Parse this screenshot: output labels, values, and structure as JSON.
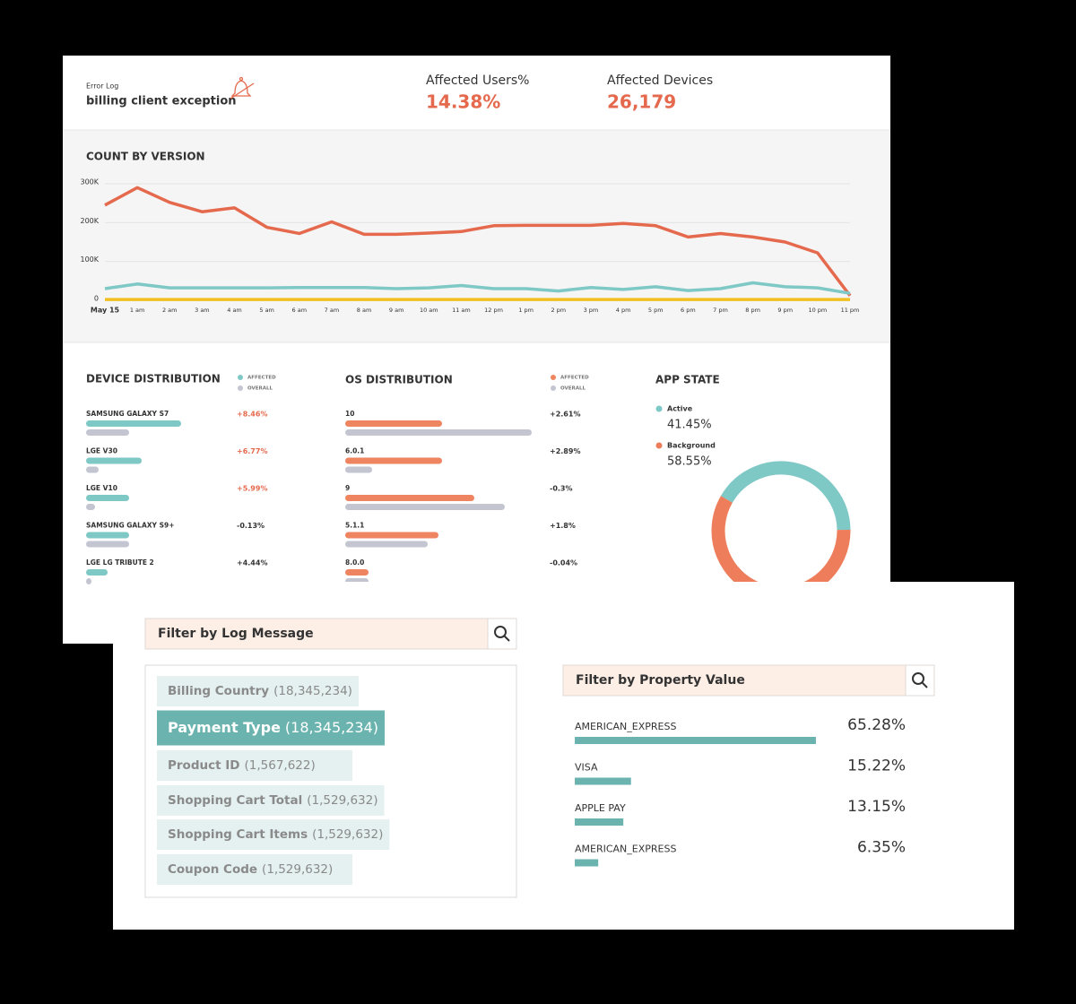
{
  "header": {
    "label": "Error Log",
    "title": "billing client exception",
    "stats": [
      {
        "label": "Affected Users%",
        "value": "14.38%"
      },
      {
        "label": "Affected Devices",
        "value": "26,179"
      }
    ]
  },
  "chart_data": [
    {
      "type": "line",
      "title": "COUNT BY VERSION",
      "categories": [
        "May 15",
        "1 am",
        "2 am",
        "3 am",
        "4 am",
        "5 am",
        "6 am",
        "7 am",
        "8 am",
        "9 am",
        "10 am",
        "11 am",
        "12 pm",
        "1 pm",
        "2 pm",
        "3 pm",
        "4 pm",
        "5 pm",
        "6 pm",
        "7 pm",
        "8 pm",
        "9 pm",
        "10 pm",
        "11 pm"
      ],
      "ylim": [
        0,
        300000
      ],
      "yticks": [
        0,
        {
          "value": 100000,
          "label": "100K"
        },
        {
          "value": 200000,
          "label": "200K"
        },
        {
          "value": 300000,
          "label": "300K"
        }
      ],
      "grid": true,
      "series": [
        {
          "color": "#e5694d",
          "values": [
            245000,
            290000,
            252000,
            228000,
            238000,
            188000,
            172000,
            202000,
            170000,
            170000,
            173000,
            177000,
            192000,
            193000,
            193000,
            193000,
            198000,
            192000,
            163000,
            172000,
            163000,
            150000,
            122000,
            12000
          ]
        },
        {
          "color": "#7ec8c6",
          "values": [
            30000,
            42000,
            32000,
            32000,
            32000,
            32000,
            33000,
            33000,
            33000,
            30000,
            32000,
            38000,
            30000,
            30000,
            24000,
            33000,
            28000,
            35000,
            25000,
            30000,
            45000,
            35000,
            32000,
            18000
          ]
        },
        {
          "color": "#f0c020",
          "values": [
            2000,
            2000,
            2000,
            2000,
            2000,
            2000,
            2000,
            2000,
            2000,
            2000,
            2000,
            2000,
            2000,
            2000,
            2000,
            2000,
            2000,
            2000,
            2000,
            2000,
            2000,
            2000,
            2000,
            2000
          ]
        }
      ]
    },
    {
      "type": "bar",
      "title": "DEVICE DISTRIBUTION",
      "xlim": [
        0,
        110
      ],
      "categories": [
        "SAMSUNG GALAXY S7",
        "LGE V30",
        "LGE V10",
        "SAMSUNG GALAXY S9+",
        "LGE LG TRIBUTE 2"
      ],
      "series": [
        {
          "name": "AFFECTED",
          "color": "#7ec8c6",
          "values": [
            53,
            31,
            24,
            24,
            12
          ]
        },
        {
          "name": "OVERALL",
          "color": "#c3c6d1",
          "values": [
            24,
            7,
            5,
            24,
            3
          ]
        }
      ],
      "changes": [
        "+8.46%",
        "+6.77%",
        "+5.99%",
        "-0.13%",
        "+4.44%"
      ],
      "change_colors": [
        "#e5694d",
        "#e5694d",
        "#e5694d",
        "#333333",
        "#333333"
      ]
    },
    {
      "type": "bar",
      "title": "OS DISTRIBUTION",
      "xlim": [
        0,
        110
      ],
      "categories": [
        "10",
        "6.0.1",
        "9",
        "5.1.1",
        "8.0.0"
      ],
      "series": [
        {
          "name": "AFFECTED",
          "color": "#ee8460",
          "values": [
            54,
            54,
            72,
            52,
            13
          ]
        },
        {
          "name": "OVERALL",
          "color": "#c3c6d1",
          "values": [
            104,
            15,
            89,
            46,
            13
          ]
        }
      ],
      "changes": [
        "+2.61%",
        "+2.89%",
        "-0.3%",
        "+1.8%",
        "-0.04%"
      ],
      "change_colors": [
        "#333333",
        "#333333",
        "#333333",
        "#333333",
        "#333333"
      ]
    },
    {
      "type": "pie",
      "title": "APP STATE",
      "categories": [
        "Active",
        "Background"
      ],
      "values": [
        41.45,
        58.55
      ],
      "value_labels": [
        "41.45%",
        "58.55%"
      ],
      "colors": [
        "#7ec8c6",
        "#ee7d5b"
      ]
    },
    {
      "type": "bar",
      "title": "Filter by Property Value",
      "categories": [
        "AMERICAN_EXPRESS",
        "VISA",
        "APPLE PAY",
        "AMERICAN_EXPRESS"
      ],
      "values": [
        65.28,
        15.22,
        13.15,
        6.35
      ],
      "value_labels": [
        "65.28%",
        "15.22%",
        "13.15%",
        "6.35%"
      ],
      "color": "#6bb3ae",
      "xlim": [
        0,
        100
      ]
    }
  ],
  "log_filter": {
    "placeholder": "Filter by Log Message",
    "selected": 1,
    "items": [
      {
        "name": "Billing Country",
        "count": "(18,345,234)"
      },
      {
        "name": "Payment Type",
        "count": "(18,345,234)"
      },
      {
        "name": "Product ID",
        "count": "(1,567,622)"
      },
      {
        "name": "Shopping Cart Total",
        "count": "(1,529,632)"
      },
      {
        "name": "Shopping Cart Items",
        "count": "(1,529,632)"
      },
      {
        "name": "Coupon Code",
        "count": "(1,529,632)"
      }
    ]
  }
}
